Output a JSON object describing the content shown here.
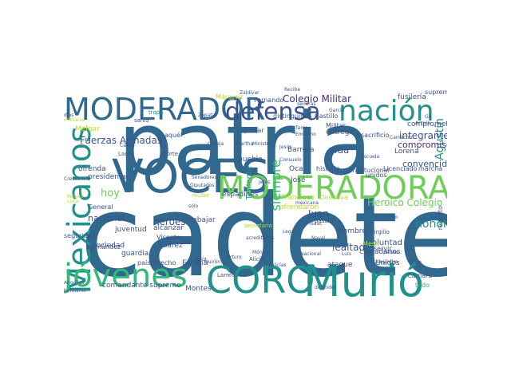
{
  "word_cloud": {
    "colors": {
      "dark_blue": "#31688e",
      "navy": "#3b528b",
      "indigo": "#472d7b",
      "purple": "#440154",
      "teal": "#21918c",
      "green": "#35b779",
      "light_green": "#6ece58",
      "lime": "#b5de2b",
      "yellow": "#fde725"
    },
    "words": [
      {
        "text": "cadete",
        "color": "#31688e"
      },
      {
        "text": "patria",
        "color": "#31688e"
      },
      {
        "text": "VOCES",
        "color": "#31688e"
      },
      {
        "text": "CORO",
        "color": "#21918c"
      },
      {
        "text": "Murió",
        "color": "#21918c"
      },
      {
        "text": "MODERADORA",
        "color": "#6ece58"
      },
      {
        "text": "MODERADOR",
        "color": "#31688e"
      },
      {
        "text": "Mexicanos",
        "color": "#21918c"
      },
      {
        "text": "jóvenes",
        "color": "#35b779"
      },
      {
        "text": "nación",
        "color": "#21918c"
      },
      {
        "text": "defensa",
        "color": "#3b528b"
      },
      {
        "text": "Colegio Militar",
        "color": "#472d7b"
      },
      {
        "text": "Heroico Colegio",
        "color": "#6ece58"
      },
      {
        "text": "Fuerzas Armadas",
        "color": "#3b528b"
      },
      {
        "text": "siempre",
        "color": "#35b779"
      },
      {
        "text": "Agustín",
        "color": "#21918c"
      },
      {
        "text": "comprometidos",
        "color": "#3b528b"
      },
      {
        "text": "compromiso",
        "color": "#472d7b"
      },
      {
        "text": "integrantes",
        "color": "#3b528b"
      },
      {
        "text": "convencidos",
        "color": "#3b528b"
      },
      {
        "text": "nacional",
        "color": "#3b528b"
      },
      {
        "text": "héroes",
        "color": "#3b528b"
      },
      {
        "text": "honor",
        "color": "#21918c"
      },
      {
        "text": "hoy",
        "color": "#6ece58"
      },
      {
        "text": "Juan",
        "color": "#3b528b"
      },
      {
        "text": "vida",
        "color": "#3b528b"
      },
      {
        "text": "hombre",
        "color": "#3b528b"
      },
      {
        "text": "lealtad",
        "color": "#3b528b"
      },
      {
        "text": "voluntad",
        "color": "#3b528b"
      },
      {
        "text": "ciudadanos",
        "color": "#3b528b"
      },
      {
        "text": "ofrendaron",
        "color": "#b5de2b"
      },
      {
        "text": "Francisco",
        "color": "#b5de2b"
      },
      {
        "text": "José",
        "color": "#3b528b"
      },
      {
        "text": "Barrera",
        "color": "#3b528b"
      },
      {
        "text": "Teniente",
        "color": "#21918c"
      },
      {
        "text": "pueblo",
        "color": "#3b528b"
      },
      {
        "text": "espadines",
        "color": "#3b528b"
      },
      {
        "text": "trabajar",
        "color": "#3b528b"
      },
      {
        "text": "alcanzar",
        "color": "#3b528b"
      },
      {
        "text": "sociedad",
        "color": "#3b528b"
      },
      {
        "text": "guardia",
        "color": "#3b528b"
      },
      {
        "text": "juventud",
        "color": "#3b528b"
      },
      {
        "text": "seguridad",
        "color": "#3b528b"
      },
      {
        "text": "presidenta",
        "color": "#3b528b"
      },
      {
        "text": "comandante supremo",
        "color": "#3b528b"
      },
      {
        "text": "Montes",
        "color": "#3b528b"
      },
      {
        "text": "Escutia",
        "color": "#3b528b"
      },
      {
        "text": "Vicente",
        "color": "#3b528b"
      },
      {
        "text": "Suárez",
        "color": "#3b528b"
      },
      {
        "text": "Melgar",
        "color": "#b5de2b"
      },
      {
        "text": "ofrenda",
        "color": "#3b528b"
      },
      {
        "text": "Oca",
        "color": "#3b528b"
      },
      {
        "text": "historia",
        "color": "#3b528b"
      },
      {
        "text": "constitucional",
        "color": "#3b528b"
      },
      {
        "text": "Licenciado",
        "color": "#3b528b"
      },
      {
        "text": "marcha",
        "color": "#3b528b"
      },
      {
        "text": "Fernando",
        "color": "#3b528b"
      },
      {
        "text": "Castillo",
        "color": "#3b528b"
      },
      {
        "text": "Márquez",
        "color": "#b5de2b"
      },
      {
        "text": "Lorena",
        "color": "#3b528b"
      },
      {
        "text": "distinguidos",
        "color": "#3b528b"
      },
      {
        "text": "fusilería",
        "color": "#3b528b"
      },
      {
        "text": "supremo",
        "color": "#3b528b"
      },
      {
        "text": "entrega",
        "color": "#3b528b"
      },
      {
        "text": "sacrificio",
        "color": "#3b528b"
      },
      {
        "text": "Militar",
        "color": "#3b528b"
      },
      {
        "text": "unidos",
        "color": "#3b528b"
      },
      {
        "text": "Unidos",
        "color": "#3b528b"
      },
      {
        "text": "ataque",
        "color": "#3b528b"
      },
      {
        "text": "Cámara",
        "color": "#3b528b"
      },
      {
        "text": "servir",
        "color": "#3b528b"
      },
      {
        "text": "respeto",
        "color": "#3b528b"
      },
      {
        "text": "gran",
        "color": "#3b528b"
      },
      {
        "text": "Virgilio",
        "color": "#3b528b"
      },
      {
        "text": "país",
        "color": "#3b528b"
      },
      {
        "text": "derecho",
        "color": "#3b528b"
      },
      {
        "text": "General",
        "color": "#3b528b"
      },
      {
        "text": "Hernández",
        "color": "#3b528b"
      },
      {
        "text": "importar",
        "color": "#3b528b"
      },
      {
        "text": "Laura",
        "color": "#3b528b"
      },
      {
        "text": "Corte",
        "color": "#3b528b"
      },
      {
        "text": "pasará",
        "color": "#3b528b"
      },
      {
        "text": "Ruiz",
        "color": "#3b528b"
      },
      {
        "text": "Alicia",
        "color": "#3b528b"
      },
      {
        "text": "Larrea",
        "color": "#3b528b"
      },
      {
        "text": "Arturo",
        "color": "#3b528b"
      },
      {
        "text": "Mónica",
        "color": "#3b528b"
      },
      {
        "text": "Isaac",
        "color": "#3b528b"
      },
      {
        "text": "Naval",
        "color": "#3b528b"
      },
      {
        "text": "Luis",
        "color": "#3b528b"
      },
      {
        "text": "Alejandro",
        "color": "#3b528b"
      },
      {
        "text": "Mesa",
        "color": "#b5de2b"
      },
      {
        "text": "todo",
        "color": "#35b779"
      },
      {
        "text": "Directiva",
        "color": "#b5de2b"
      },
      {
        "text": "mexicana",
        "color": "#3b528b"
      },
      {
        "text": "Senadores",
        "color": "#3b528b"
      },
      {
        "text": "Diputados",
        "color": "#3b528b"
      },
      {
        "text": "recibir",
        "color": "#b5de2b"
      },
      {
        "text": "aquél",
        "color": "#3b528b"
      },
      {
        "text": "tropa",
        "color": "#21918c"
      },
      {
        "text": "Tania",
        "color": "#3b528b"
      },
      {
        "text": "Emiliano",
        "color": "#3b528b"
      },
      {
        "text": "Escuela",
        "color": "#3b528b"
      },
      {
        "text": "Consuelo",
        "color": "#3b528b"
      },
      {
        "text": "Jesús",
        "color": "#3b528b"
      },
      {
        "text": "defender",
        "color": "#3b528b"
      },
      {
        "text": "Crescencio",
        "color": "#3b528b"
      },
      {
        "text": "Angélica",
        "color": "#3b528b"
      },
      {
        "text": "heroísmo",
        "color": "#3b528b"
      },
      {
        "text": "militares",
        "color": "#b5de2b"
      },
      {
        "text": "México",
        "color": "#b5de2b"
      },
      {
        "text": "Lista",
        "color": "#b5de2b"
      },
      {
        "text": "salva",
        "color": "#3b528b"
      },
      {
        "text": "días",
        "color": "#3b528b"
      },
      {
        "text": "secretario",
        "color": "#b5de2b"
      },
      {
        "text": "Calleja",
        "color": "#3b528b"
      },
      {
        "text": "Zapata",
        "color": "#3b528b"
      },
      {
        "text": "Martha",
        "color": "#3b528b"
      },
      {
        "text": "Ministro",
        "color": "#3b528b"
      },
      {
        "text": "Recibe",
        "color": "#3b528b"
      },
      {
        "text": "Zaldívar",
        "color": "#3b528b"
      },
      {
        "text": "acreditados",
        "color": "#3b528b"
      },
      {
        "text": "García",
        "color": "#3b528b"
      },
      {
        "text": "Camacho",
        "color": "#3b528b"
      },
      {
        "text": "Legal",
        "color": "#3b528b"
      },
      {
        "text": "retiro",
        "color": "#3b528b"
      },
      {
        "text": "Arzola",
        "color": "#3b528b"
      },
      {
        "text": "Gil",
        "color": "#3b528b"
      },
      {
        "text": "policías",
        "color": "#3b528b"
      },
      {
        "text": "sólo",
        "color": "#3b528b"
      },
      {
        "text": "voz",
        "color": "#3b528b"
      },
      {
        "text": "Nacional",
        "color": "#3b528b"
      },
      {
        "text": "señoras",
        "color": "#3b528b"
      },
      {
        "text": "jefes",
        "color": "#3b528b"
      },
      {
        "text": "Cabos",
        "color": "#3b528b"
      },
      {
        "text": "Quirón",
        "color": "#3b528b"
      },
      {
        "text": "señor",
        "color": "#3b528b"
      },
      {
        "text": "países",
        "color": "#3b528b"
      }
    ]
  }
}
